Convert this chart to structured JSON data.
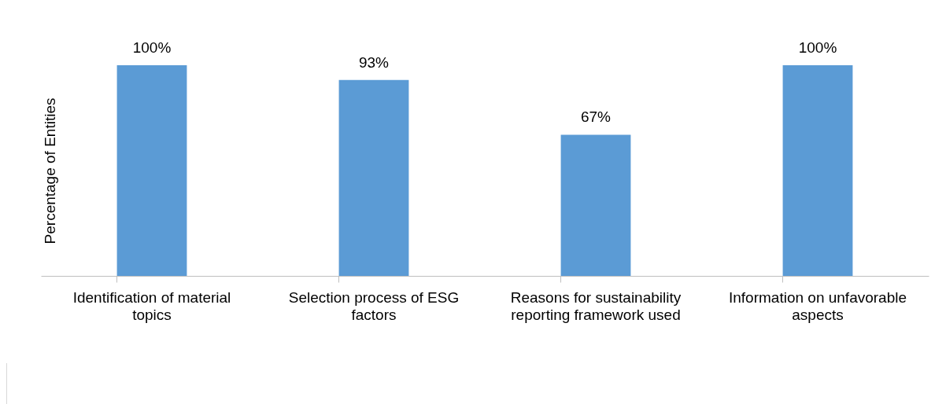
{
  "chart_data": {
    "type": "bar",
    "ylabel": "Percentage of Entities",
    "categories": [
      "Identification of material topics",
      "Selection process of ESG factors",
      "Reasons for sustainability reporting framework used",
      "Information on unfavorable aspects"
    ],
    "values": [
      100,
      93,
      67,
      100
    ],
    "value_labels": [
      "100%",
      "93%",
      "67%",
      "100%"
    ],
    "color": "#5b9bd5"
  }
}
